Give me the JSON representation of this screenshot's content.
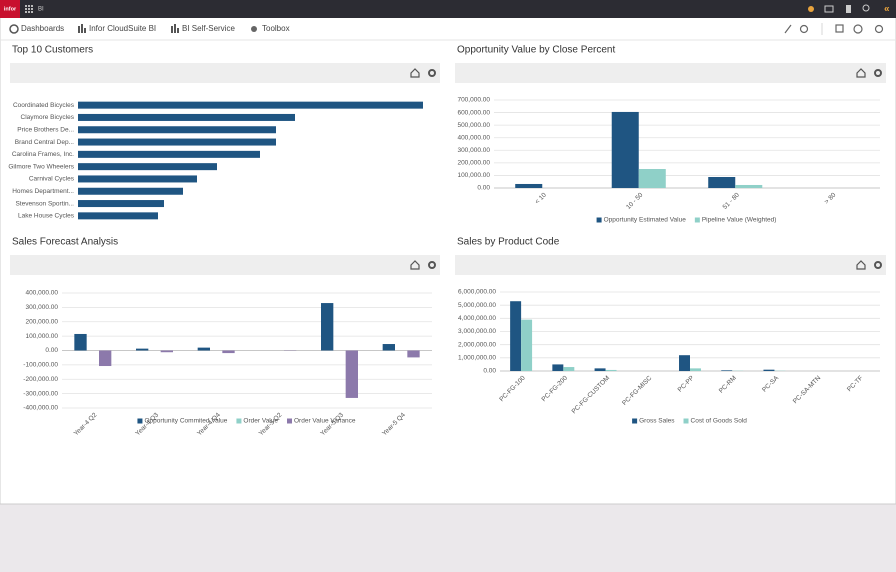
{
  "header": {
    "logo": "infor",
    "app": "BI"
  },
  "nav": [
    "Dashboards",
    "Infor CloudSuite BI",
    "BI Self-Service",
    "Toolbox"
  ],
  "chart_data": [
    {
      "type": "hbar",
      "title": "Top 10 Customers",
      "categories": [
        "Coordinated Bicycles",
        "Claymore Bicycles",
        "Price Brothers De...",
        "Brand Central Dep...",
        "Carolina Frames, Inc.",
        "Gilmore Two Wheelers",
        "Carnival Cycles",
        "Homes Department...",
        "Stevenson Sportin...",
        "Lake House Cycles"
      ],
      "values": [
        345,
        217,
        198,
        198,
        182,
        139,
        119,
        105,
        86,
        80
      ],
      "color": "#1f5582"
    },
    {
      "type": "bar",
      "title": "Opportunity Value by Close Percent",
      "categories": [
        "< 10",
        "10 - 50",
        "51 - 80",
        "> 80"
      ],
      "series": [
        {
          "name": "Opportunity Estimated Value",
          "color": "#1f5582",
          "values": [
            32000,
            605000,
            87500,
            0
          ]
        },
        {
          "name": "Pipeline Value (Weighted)",
          "color": "#8fd0c8",
          "values": [
            0,
            151000,
            24000,
            0
          ]
        }
      ],
      "ylim": [
        0,
        700000
      ],
      "yticks": [
        {
          "value": 0,
          "label": "0.00"
        },
        {
          "value": 100000,
          "label": "100,000.00"
        },
        {
          "value": 200000,
          "label": "200,000.00"
        },
        {
          "value": 300000,
          "label": "300,000.00"
        },
        {
          "value": 400000,
          "label": "400,000.00"
        },
        {
          "value": 500000,
          "label": "500,000.00"
        },
        {
          "value": 600000,
          "label": "600,000.00"
        },
        {
          "value": 700000,
          "label": "700,000.00"
        }
      ],
      "grid": true
    },
    {
      "type": "bar",
      "title": "Sales Forecast Analysis",
      "categories": [
        "Year-4 Q2",
        "Year-4 Q3",
        "Year-4 Q4",
        "Year-5 Q2",
        "Year-5 Q3",
        "Year-5 Q4"
      ],
      "series": [
        {
          "name": "Opportunity Commited Value",
          "color": "#1f5582",
          "values": [
            115000,
            13000,
            20000,
            0,
            330000,
            45000
          ]
        },
        {
          "name": "Order Value",
          "color": "#8fd0c8",
          "values": [
            0,
            0,
            0,
            0,
            0,
            0
          ]
        },
        {
          "name": "Order Value Variance",
          "color": "#8c79ab",
          "values": [
            -108000,
            -12000,
            -18000,
            -2000,
            -330000,
            -48000
          ]
        }
      ],
      "ylim": [
        -400000,
        400000
      ],
      "yticks": [
        {
          "value": -400000,
          "label": "-400,000.00"
        },
        {
          "value": -300000,
          "label": "-300,000.00"
        },
        {
          "value": -200000,
          "label": "-200,000.00"
        },
        {
          "value": -100000,
          "label": "-100,000.00"
        },
        {
          "value": 0,
          "label": "0.00"
        },
        {
          "value": 100000,
          "label": "100,000.00"
        },
        {
          "value": 200000,
          "label": "200,000.00"
        },
        {
          "value": 300000,
          "label": "300,000.00"
        },
        {
          "value": 400000,
          "label": "400,000.00"
        }
      ],
      "grid": true
    },
    {
      "type": "bar",
      "title": "Sales by Product Code",
      "categories": [
        "PC-FG-100",
        "PC-FG-200",
        "PC-FG-CUSTOM",
        "PC-FG-MISC",
        "PC-PP",
        "PC-RM",
        "PC-SA",
        "PC-SA-MTN",
        "PC-TF"
      ],
      "series": [
        {
          "name": "Gross Sales",
          "color": "#1f5582",
          "values": [
            5300000,
            500000,
            200000,
            0,
            1200000,
            50000,
            100000,
            0,
            0
          ]
        },
        {
          "name": "Cost of Goods Sold",
          "color": "#8fd0c8",
          "values": [
            3900000,
            300000,
            80000,
            0,
            200000,
            20000,
            20000,
            0,
            0
          ]
        }
      ],
      "ylim": [
        0,
        6000000
      ],
      "yticks": [
        {
          "value": 0,
          "label": "0.00"
        },
        {
          "value": 1000000,
          "label": "1,000,000.00"
        },
        {
          "value": 2000000,
          "label": "2,000,000.00"
        },
        {
          "value": 3000000,
          "label": "3,000,000.00"
        },
        {
          "value": 4000000,
          "label": "4,000,000.00"
        },
        {
          "value": 5000000,
          "label": "5,000,000.00"
        },
        {
          "value": 6000000,
          "label": "6,000,000.00"
        }
      ],
      "grid": true
    }
  ]
}
